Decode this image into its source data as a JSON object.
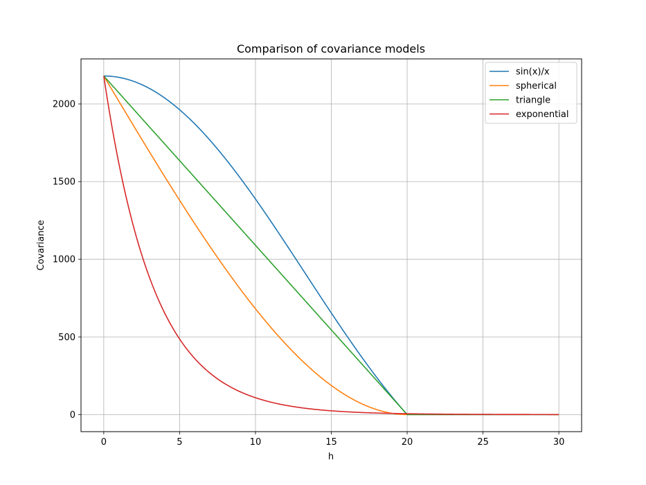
{
  "chart_data": {
    "type": "line",
    "title": "Comparison of covariance models",
    "xlabel": "h",
    "ylabel": "Covariance",
    "xlim": [
      -1.5,
      31.5
    ],
    "ylim": [
      -110,
      2290
    ],
    "xticks": [
      0,
      5,
      10,
      15,
      20,
      25,
      30
    ],
    "yticks": [
      0,
      500,
      1000,
      1500,
      2000
    ],
    "grid": true,
    "legend_position": "top-right",
    "sill": 2180,
    "range": 20,
    "x_max": 30,
    "series": [
      {
        "name": "sin(x)/x",
        "color": "#1f77b4",
        "model": "sinc"
      },
      {
        "name": "spherical",
        "color": "#ff7f0e",
        "model": "spherical"
      },
      {
        "name": "triangle",
        "color": "#2ca02c",
        "model": "triangle"
      },
      {
        "name": "exponential",
        "color": "#d62728",
        "model": "exponential"
      }
    ]
  }
}
